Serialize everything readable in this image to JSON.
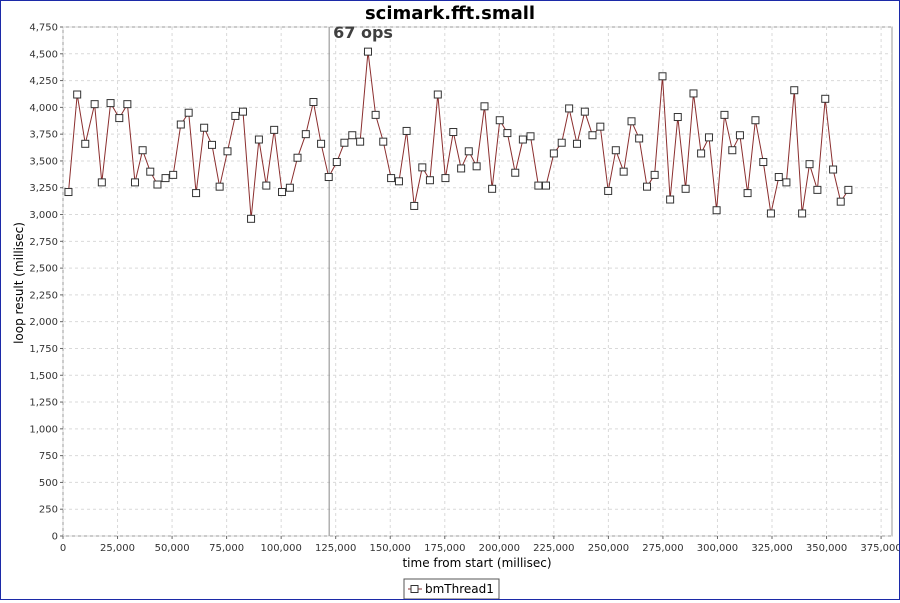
{
  "chart_data": {
    "type": "line",
    "title": "scimark.fft.small",
    "xlabel": "time from start (millisec)",
    "ylabel": "loop result (millisec)",
    "xlim": [
      0,
      380000
    ],
    "ylim": [
      0,
      4750
    ],
    "x_ticks": [
      0,
      25000,
      50000,
      75000,
      100000,
      125000,
      150000,
      175000,
      200000,
      225000,
      250000,
      275000,
      300000,
      325000,
      350000,
      375000
    ],
    "x_tick_labels": [
      "0",
      "25,000",
      "50,000",
      "75,000",
      "100,000",
      "125,000",
      "150,000",
      "175,000",
      "200,000",
      "225,000",
      "250,000",
      "275,000",
      "300,000",
      "325,000",
      "350,000",
      "375,000"
    ],
    "y_ticks": [
      0,
      250,
      500,
      750,
      1000,
      1250,
      1500,
      1750,
      2000,
      2250,
      2500,
      2750,
      3000,
      3250,
      3500,
      3750,
      4000,
      4250,
      4500,
      4750
    ],
    "y_tick_labels": [
      "0",
      "250",
      "500",
      "750",
      "1,000",
      "1,250",
      "1,500",
      "1,750",
      "2,000",
      "2,250",
      "2,500",
      "2,750",
      "3,000",
      "3,250",
      "3,500",
      "3,750",
      "4,000",
      "4,250",
      "4,500",
      "4,750"
    ],
    "grid": true,
    "legend_position": "bottom",
    "marker_line": {
      "x": 122000,
      "label": "67 ops"
    },
    "series": [
      {
        "name": "bmThread1",
        "color": "#8b2e2e",
        "marker": "square",
        "x": [
          2500,
          6500,
          10200,
          14500,
          17800,
          21800,
          25800,
          29500,
          33000,
          36500,
          40000,
          43300,
          47000,
          50500,
          54000,
          57600,
          61000,
          64700,
          68300,
          71800,
          75400,
          79000,
          82500,
          86200,
          89800,
          93200,
          96800,
          100400,
          104000,
          107500,
          111300,
          114800,
          118300,
          121800,
          125500,
          129000,
          132600,
          136200,
          139800,
          143300,
          146800,
          150400,
          154000,
          157500,
          161000,
          164700,
          168200,
          171800,
          175300,
          178900,
          182500,
          186000,
          189600,
          193200,
          196700,
          200200,
          203700,
          207300,
          210800,
          214300,
          217900,
          221400,
          225000,
          228600,
          232000,
          235600,
          239200,
          242700,
          246300,
          249900,
          253400,
          257000,
          260600,
          264100,
          267700,
          271200,
          274800,
          278300,
          281800,
          285400,
          289000,
          292500,
          296100,
          299600,
          303200,
          306800,
          310300,
          313800,
          317400,
          321000,
          324500,
          328100,
          331600,
          335200,
          338800,
          342200,
          345800,
          349400,
          353000,
          356500,
          360000
        ],
        "y": [
          3210,
          4120,
          3660,
          4030,
          3300,
          4040,
          3900,
          4030,
          3300,
          3600,
          3400,
          3280,
          3340,
          3370,
          3840,
          3950,
          3200,
          3810,
          3650,
          3260,
          3590,
          3920,
          3960,
          2960,
          3700,
          3270,
          3790,
          3210,
          3250,
          3530,
          3750,
          4050,
          3660,
          3350,
          3490,
          3670,
          3740,
          3680,
          4520,
          3930,
          3680,
          3340,
          3310,
          3780,
          3080,
          3440,
          3320,
          4120,
          3340,
          3770,
          3430,
          3590,
          3450,
          4010,
          3240,
          3880,
          3760,
          3390,
          3700,
          3730,
          3270,
          3270,
          3570,
          3670,
          3990,
          3660,
          3960,
          3740,
          3820,
          3220,
          3600,
          3400,
          3870,
          3710,
          3260,
          3370,
          4290,
          3140,
          3910,
          3240,
          4130,
          3570,
          3720,
          3040,
          3930,
          3600,
          3740,
          3200,
          3880,
          3490,
          3010,
          3350,
          3300,
          4160,
          3010,
          3470,
          3230,
          4080,
          3420,
          3120,
          3230
        ]
      }
    ]
  }
}
